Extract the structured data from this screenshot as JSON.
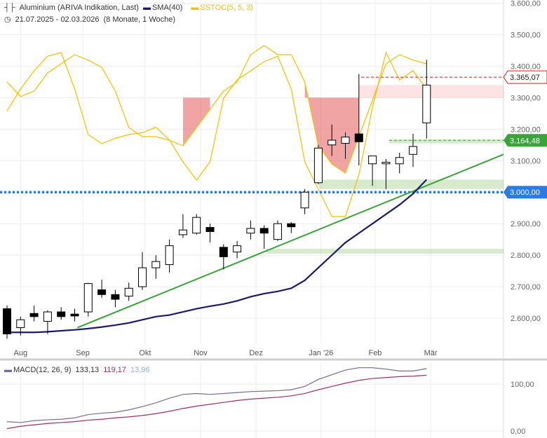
{
  "header": {
    "instrument": "Aluminium (ARIVA Indikation, Last)",
    "sma_label": "SMA(40)",
    "sstoc_label": "SSTOC(5, 5, 3)",
    "date_range": "21.07.2025 - 02.03.2026",
    "period": "(8 Monate, 1 Woche)"
  },
  "macd_legend": {
    "label": "MACD(12, 26, 9)",
    "macd": "133,13",
    "signal": "119,17",
    "hist": "13,96"
  },
  "colors": {
    "candle_up_fill": "#ffffff",
    "candle_down_fill": "#000000",
    "sma": "#1a1a6e",
    "stoch_k": "#f5c000",
    "stoch_d": "#f5c000",
    "trendline": "#3aa43a",
    "support": "#2a7be4",
    "price_tag_red": "#e8140c",
    "price_tag_green": "#3aa43a",
    "macd_line": "#7a6a9a",
    "macd_signal": "#a0306a"
  },
  "chart_data": [
    {
      "type": "candlestick",
      "x_axis_labels": [
        "Aug",
        "Sep",
        "Okt",
        "Nov",
        "Dez",
        "Jan '26",
        "Feb",
        "Mär"
      ],
      "y_ticks": [
        "3.600,00",
        "3.500,00",
        "3.400,00",
        "3.300,00",
        "3.200,00",
        "3.100,00",
        "3.000,00",
        "2.900,00",
        "2.800,00",
        "2.700,00",
        "2.600,00"
      ],
      "y_tick_values": [
        3600,
        3500,
        3400,
        3300,
        3200,
        3100,
        3000,
        2900,
        2800,
        2700,
        2600
      ],
      "ylim": [
        2520,
        3610
      ],
      "candles": [
        {
          "o": 2630,
          "h": 2640,
          "l": 2535,
          "c": 2550
        },
        {
          "o": 2570,
          "h": 2605,
          "l": 2545,
          "c": 2595
        },
        {
          "o": 2615,
          "h": 2640,
          "l": 2590,
          "c": 2605
        },
        {
          "o": 2590,
          "h": 2625,
          "l": 2550,
          "c": 2620
        },
        {
          "o": 2620,
          "h": 2635,
          "l": 2595,
          "c": 2605
        },
        {
          "o": 2613,
          "h": 2630,
          "l": 2590,
          "c": 2607
        },
        {
          "o": 2620,
          "h": 2712,
          "l": 2605,
          "c": 2710
        },
        {
          "o": 2690,
          "h": 2722,
          "l": 2665,
          "c": 2675
        },
        {
          "o": 2675,
          "h": 2690,
          "l": 2635,
          "c": 2660
        },
        {
          "o": 2670,
          "h": 2713,
          "l": 2655,
          "c": 2695
        },
        {
          "o": 2700,
          "h": 2810,
          "l": 2690,
          "c": 2760
        },
        {
          "o": 2760,
          "h": 2800,
          "l": 2725,
          "c": 2780
        },
        {
          "o": 2770,
          "h": 2850,
          "l": 2745,
          "c": 2830
        },
        {
          "o": 2865,
          "h": 2930,
          "l": 2855,
          "c": 2880
        },
        {
          "o": 2870,
          "h": 2930,
          "l": 2865,
          "c": 2920
        },
        {
          "o": 2888,
          "h": 2900,
          "l": 2840,
          "c": 2875
        },
        {
          "o": 2825,
          "h": 2835,
          "l": 2755,
          "c": 2795
        },
        {
          "o": 2810,
          "h": 2845,
          "l": 2790,
          "c": 2830
        },
        {
          "o": 2870,
          "h": 2910,
          "l": 2850,
          "c": 2885
        },
        {
          "o": 2885,
          "h": 2895,
          "l": 2820,
          "c": 2870
        },
        {
          "o": 2850,
          "h": 2910,
          "l": 2845,
          "c": 2900
        },
        {
          "o": 2900,
          "h": 2905,
          "l": 2870,
          "c": 2890
        },
        {
          "o": 2950,
          "h": 3010,
          "l": 2930,
          "c": 3000
        },
        {
          "o": 3030,
          "h": 3150,
          "l": 3025,
          "c": 3140
        },
        {
          "o": 3150,
          "h": 3215,
          "l": 3115,
          "c": 3165
        },
        {
          "o": 3155,
          "h": 3190,
          "l": 3105,
          "c": 3175
        },
        {
          "o": 3185,
          "h": 3375,
          "l": 3085,
          "c": 3160
        },
        {
          "o": 3090,
          "h": 3115,
          "l": 3020,
          "c": 3115
        },
        {
          "o": 3090,
          "h": 3105,
          "l": 3010,
          "c": 3095
        },
        {
          "o": 3090,
          "h": 3125,
          "l": 3060,
          "c": 3110
        },
        {
          "o": 3120,
          "h": 3185,
          "l": 3080,
          "c": 3145
        },
        {
          "o": 3220,
          "h": 3420,
          "l": 3170,
          "c": 3340
        }
      ],
      "sma": [
        2555,
        2555,
        2555,
        2557,
        2560,
        2563,
        2567,
        2572,
        2578,
        2585,
        2595,
        2605,
        2610,
        2620,
        2630,
        2638,
        2645,
        2655,
        2668,
        2678,
        2685,
        2695,
        2720,
        2760,
        2800,
        2840,
        2870,
        2900,
        2930,
        2960,
        2995,
        3040
      ],
      "price_levels": [
        {
          "value": 3365.07,
          "label": "3.365,07",
          "color": "#e8140c"
        },
        {
          "value": 3164.48,
          "label": "3.164,48",
          "color": "#3aa43a"
        },
        {
          "value": 3000.0,
          "label": "3.000,00",
          "color": "#2a7be4"
        }
      ],
      "stochastic_k": [
        0.68,
        0.8,
        0.9,
        0.98,
        1.0,
        0.8,
        0.55,
        0.5,
        0.53,
        0.55,
        0.56,
        0.59,
        0.52,
        0.4,
        0.3,
        0.4,
        0.75,
        0.85,
        0.9,
        0.95,
        0.98,
        0.8,
        0.4,
        0.25,
        0.1,
        0.1,
        0.33,
        0.7,
        1.0,
        0.85,
        0.9,
        0.8
      ],
      "stochastic_d": [
        0.8,
        0.72,
        0.75,
        0.85,
        0.9,
        0.95,
        0.92,
        0.88,
        0.75,
        0.55,
        0.5,
        0.5,
        0.48,
        0.45,
        0.55,
        0.65,
        0.75,
        0.8,
        0.95,
        1.0,
        0.95,
        0.95,
        0.8,
        0.45,
        0.35,
        0.3,
        0.5,
        0.7,
        0.9,
        0.95,
        0.92,
        0.9
      ]
    },
    {
      "type": "line",
      "name": "MACD(12, 26, 9)",
      "y_ticks": [
        "100,00",
        "0,00"
      ],
      "y_tick_values": [
        100,
        0
      ],
      "ylim": [
        -15,
        145
      ],
      "series": [
        {
          "name": "MACD",
          "values": [
            20,
            18,
            22,
            24,
            25,
            28,
            35,
            38,
            40,
            45,
            52,
            60,
            70,
            78,
            80,
            78,
            80,
            82,
            84,
            85,
            86,
            88,
            95,
            110,
            120,
            130,
            135,
            135,
            132,
            128,
            128,
            133
          ]
        },
        {
          "name": "Signal",
          "values": [
            5,
            10,
            13,
            16,
            18,
            20,
            23,
            25,
            28,
            30,
            33,
            37,
            42,
            48,
            53,
            57,
            61,
            65,
            68,
            70,
            72,
            75,
            80,
            88,
            95,
            102,
            108,
            112,
            114,
            116,
            117,
            119
          ]
        }
      ]
    }
  ]
}
